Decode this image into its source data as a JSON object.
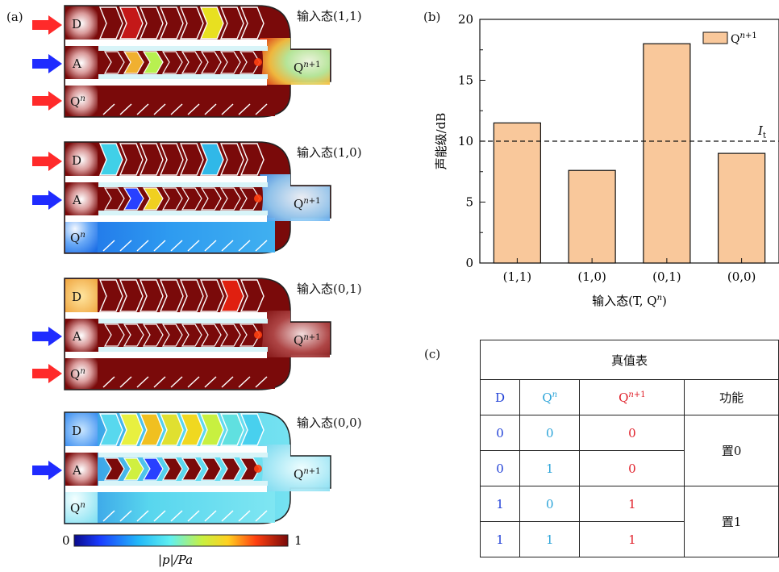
{
  "panels": {
    "a": "(a)",
    "b": "(b)",
    "c": "(c)"
  },
  "devices": [
    {
      "state": "输入态(1,1)",
      "port_d": "D",
      "port_a": "A",
      "port_q": "Q",
      "output": "Q",
      "d_arrow": true,
      "q_arrow": true
    },
    {
      "state": "输入态(1,0)",
      "port_d": "D",
      "port_a": "A",
      "port_q": "Q",
      "output": "Q",
      "d_arrow": true,
      "q_arrow": false
    },
    {
      "state": "输入态(0,1)",
      "port_d": "D",
      "port_a": "A",
      "port_q": "Q",
      "output": "Q",
      "d_arrow": false,
      "q_arrow": true
    },
    {
      "state": "输入态(0,0)",
      "port_d": "D",
      "port_a": "A",
      "port_q": "Q",
      "output": "Q",
      "d_arrow": false,
      "q_arrow": false
    }
  ],
  "colorbar": {
    "min": "0",
    "max": "1",
    "label": "|p|/Pa"
  },
  "colors": {
    "red_arrow": "#ff2a2a",
    "blue_arrow": "#1f2bff",
    "bar_fill": "#f9c89b",
    "bar_stroke": "#111111",
    "field_dark": "#7a0a0a"
  },
  "chart_data": {
    "type": "bar",
    "categories": [
      "(1,1)",
      "(1,0)",
      "(0,1)",
      "(0,0)"
    ],
    "values": [
      11.5,
      7.6,
      18.0,
      9.0
    ],
    "xlabel": "输入态(T, Q",
    "xlabel_end": ")",
    "ylabel": "声能级/dB",
    "ylim": [
      0,
      20
    ],
    "yticks": [
      "0",
      "5",
      "10",
      "15",
      "20"
    ],
    "legend": {
      "name": "Q",
      "placement": "top-right"
    },
    "threshold": {
      "value": 10,
      "label": "I",
      "label_sub": "t"
    }
  },
  "truth_table": {
    "title": "真值表",
    "headers": [
      "D",
      "Q",
      "Q",
      "功能"
    ],
    "rows": [
      {
        "d": "0",
        "q": "0",
        "qn1": "0"
      },
      {
        "d": "0",
        "q": "1",
        "qn1": "0"
      },
      {
        "d": "1",
        "q": "0",
        "qn1": "1"
      },
      {
        "d": "1",
        "q": "1",
        "qn1": "1"
      }
    ],
    "functions": [
      "置0",
      "置1"
    ]
  }
}
